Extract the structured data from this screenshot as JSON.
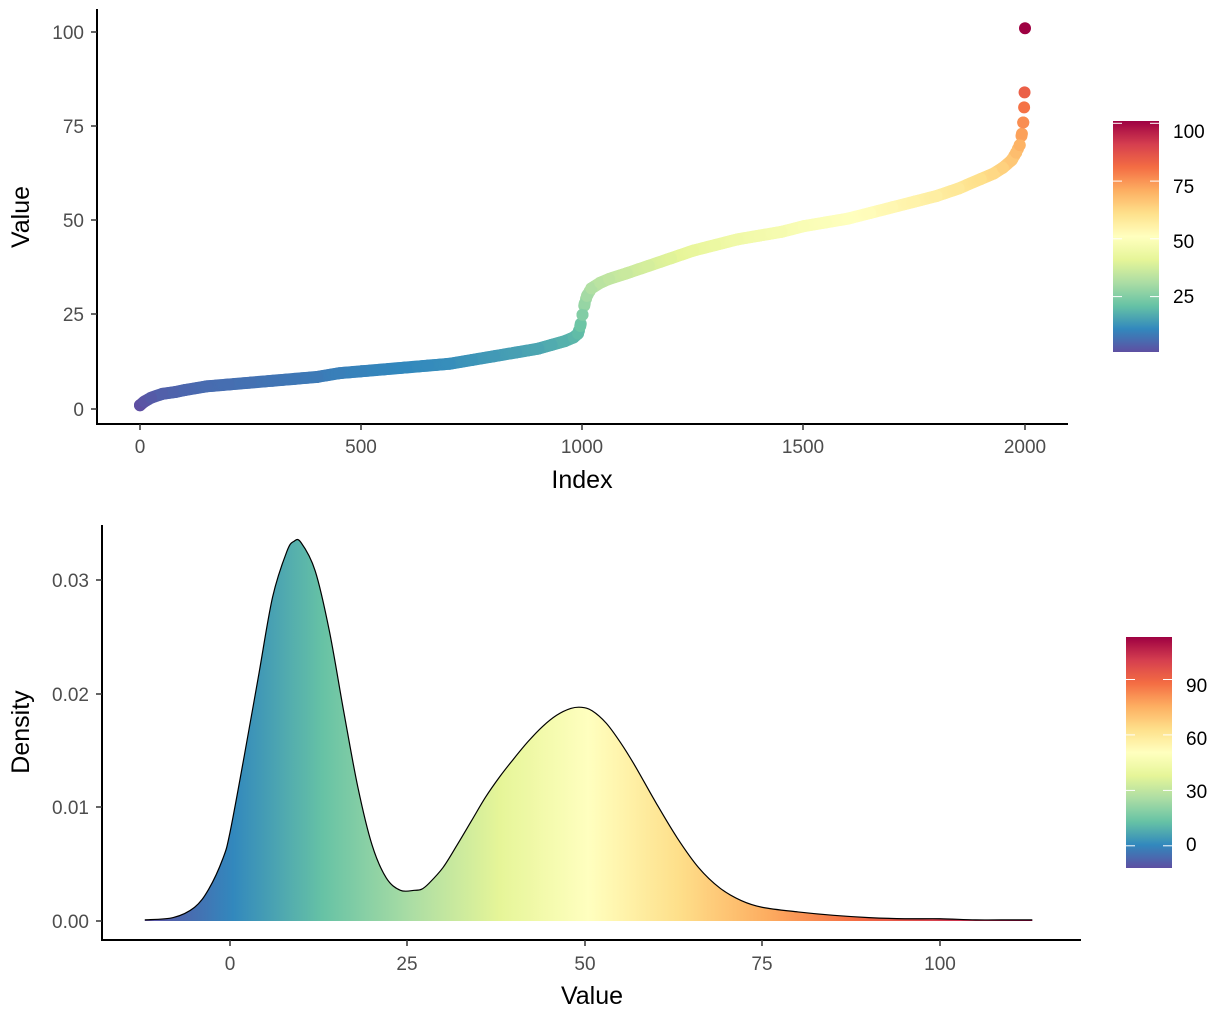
{
  "palette": [
    "#5E4FA2",
    "#3288BD",
    "#66C2A5",
    "#ABDDA4",
    "#E6F598",
    "#FFFFBF",
    "#FEE08B",
    "#FDAE61",
    "#F46D43",
    "#D53E4F",
    "#9E0142"
  ],
  "chart_data": [
    {
      "type": "scatter",
      "xlabel": "Index",
      "ylabel": "Value",
      "xlim": [
        -100,
        2100
      ],
      "ylim": [
        -4,
        106
      ],
      "x_ticks": [
        "0",
        "500",
        "1000",
        "1500",
        "2000"
      ],
      "y_ticks": [
        "0",
        "25",
        "50",
        "75",
        "100"
      ],
      "grid": false,
      "legend": {
        "position": "right",
        "type": "colorbar",
        "range": [
          1,
          101
        ],
        "labels": [
          "25",
          "50",
          "75",
          "100"
        ]
      },
      "points_x": [
        0,
        10,
        25,
        50,
        80,
        100,
        150,
        200,
        250,
        300,
        350,
        400,
        450,
        500,
        550,
        600,
        650,
        700,
        750,
        800,
        850,
        900,
        930,
        960,
        980,
        990,
        995,
        1000,
        1005,
        1010,
        1020,
        1040,
        1060,
        1100,
        1150,
        1200,
        1250,
        1300,
        1350,
        1400,
        1450,
        1500,
        1550,
        1600,
        1650,
        1700,
        1750,
        1800,
        1850,
        1900,
        1930,
        1950,
        1970,
        1980,
        1988,
        1993,
        1996,
        1998,
        1999,
        2000
      ],
      "points_y": [
        1,
        2,
        3,
        4,
        4.5,
        5,
        6,
        6.5,
        7,
        7.5,
        8,
        8.5,
        9.5,
        10,
        10.5,
        11,
        11.5,
        12,
        13,
        14,
        15,
        16,
        17,
        18,
        19,
        20,
        22,
        25,
        28,
        30,
        32,
        33.5,
        34.5,
        36,
        38,
        40,
        42,
        43.5,
        45,
        46,
        47,
        48.5,
        49.5,
        50.5,
        52,
        53.5,
        55,
        56.5,
        58.5,
        61,
        62.5,
        64,
        66,
        68,
        70,
        73,
        76,
        80,
        84,
        101
      ]
    },
    {
      "type": "area",
      "xlabel": "Value",
      "ylabel": "Density",
      "xlim": [
        -18,
        120
      ],
      "ylim": [
        -0.0017,
        0.0352
      ],
      "x_ticks": [
        "0",
        "25",
        "50",
        "75",
        "100"
      ],
      "y_ticks": [
        "0.00",
        "0.01",
        "0.02",
        "0.03"
      ],
      "grid": false,
      "legend": {
        "position": "right",
        "type": "colorbar",
        "range": [
          -12,
          113
        ],
        "labels": [
          "0",
          "30",
          "60",
          "90"
        ]
      },
      "x": [
        -12,
        -8,
        -5,
        -3,
        -1,
        0,
        2,
        4,
        6,
        8,
        9,
        10,
        12,
        14,
        16,
        18,
        20,
        22,
        24,
        26,
        27,
        28,
        30,
        32,
        34,
        36,
        38,
        40,
        42,
        44,
        46,
        48,
        49.5,
        51,
        53,
        55,
        57,
        60,
        63,
        66,
        69,
        72,
        75,
        80,
        85,
        90,
        95,
        100,
        105,
        110,
        113
      ],
      "y": [
        0.0001,
        0.0003,
        0.0012,
        0.0028,
        0.0055,
        0.0078,
        0.0145,
        0.0215,
        0.0285,
        0.0325,
        0.0334,
        0.0333,
        0.0308,
        0.0255,
        0.0185,
        0.0118,
        0.0067,
        0.0038,
        0.0027,
        0.0027,
        0.0028,
        0.0033,
        0.0047,
        0.0067,
        0.0088,
        0.0109,
        0.0127,
        0.0143,
        0.0158,
        0.0171,
        0.0181,
        0.0187,
        0.0188,
        0.0185,
        0.0174,
        0.0157,
        0.0137,
        0.0104,
        0.0073,
        0.0047,
        0.0029,
        0.0018,
        0.0012,
        0.0008,
        0.0005,
        0.0003,
        0.0002,
        0.0002,
        0.0001,
        0.0001,
        0.0001
      ]
    }
  ]
}
